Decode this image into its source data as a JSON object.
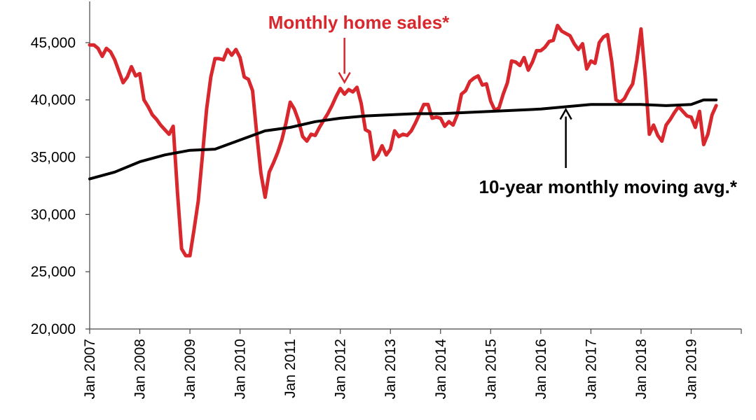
{
  "chart_data": {
    "type": "line",
    "title": "",
    "xlabel": "",
    "ylabel": "",
    "ylim": [
      20000,
      47500
    ],
    "yticks": [
      20000,
      25000,
      30000,
      35000,
      40000,
      45000
    ],
    "ytick_labels": [
      "20,000",
      "25,000",
      "30,000",
      "35,000",
      "40,000",
      "45,000"
    ],
    "xticks": [
      "2007-01",
      "2008-01",
      "2009-01",
      "2010-01",
      "2011-01",
      "2012-01",
      "2013-01",
      "2014-01",
      "2015-01",
      "2016-01",
      "2017-01",
      "2018-01",
      "2019-01"
    ],
    "xtick_labels": [
      "Jan 2007",
      "Jan 2008",
      "Jan 2009",
      "Jan 2010",
      "Jan 2011",
      "Jan 2012",
      "Jan 2013",
      "Jan 2014",
      "Jan 2015",
      "Jan 2016",
      "Jan 2017",
      "Jan 2018",
      "Jan 2019"
    ],
    "x_range": [
      "2007-01",
      "2020-01"
    ],
    "grid": false,
    "series": [
      {
        "name": "Monthly home sales*",
        "color": "#d9272e",
        "points": [
          [
            "2007-01",
            44800
          ],
          [
            "2007-02",
            44800
          ],
          [
            "2007-03",
            44500
          ],
          [
            "2007-04",
            43800
          ],
          [
            "2007-05",
            44500
          ],
          [
            "2007-06",
            44200
          ],
          [
            "2007-07",
            43500
          ],
          [
            "2007-08",
            42500
          ],
          [
            "2007-09",
            41500
          ],
          [
            "2007-10",
            42000
          ],
          [
            "2007-11",
            42900
          ],
          [
            "2007-12",
            42100
          ],
          [
            "2008-01",
            42300
          ],
          [
            "2008-02",
            40000
          ],
          [
            "2008-03",
            39400
          ],
          [
            "2008-04",
            38700
          ],
          [
            "2008-05",
            38300
          ],
          [
            "2008-06",
            37800
          ],
          [
            "2008-07",
            37400
          ],
          [
            "2008-08",
            37000
          ],
          [
            "2008-09",
            37700
          ],
          [
            "2008-10",
            32000
          ],
          [
            "2008-11",
            27000
          ],
          [
            "2008-12",
            26400
          ],
          [
            "2009-01",
            26400
          ],
          [
            "2009-02",
            28700
          ],
          [
            "2009-03",
            31200
          ],
          [
            "2009-04",
            35200
          ],
          [
            "2009-05",
            39200
          ],
          [
            "2009-06",
            42000
          ],
          [
            "2009-07",
            43600
          ],
          [
            "2009-08",
            43600
          ],
          [
            "2009-09",
            43500
          ],
          [
            "2009-10",
            44400
          ],
          [
            "2009-11",
            43900
          ],
          [
            "2009-12",
            44400
          ],
          [
            "2010-01",
            43700
          ],
          [
            "2010-02",
            42000
          ],
          [
            "2010-03",
            41800
          ],
          [
            "2010-04",
            40800
          ],
          [
            "2010-05",
            37000
          ],
          [
            "2010-06",
            33600
          ],
          [
            "2010-07",
            31500
          ],
          [
            "2010-08",
            33700
          ],
          [
            "2010-09",
            34500
          ],
          [
            "2010-10",
            35400
          ],
          [
            "2010-11",
            36500
          ],
          [
            "2010-12",
            38000
          ],
          [
            "2011-01",
            39800
          ],
          [
            "2011-02",
            39200
          ],
          [
            "2011-03",
            38200
          ],
          [
            "2011-04",
            36800
          ],
          [
            "2011-05",
            36400
          ],
          [
            "2011-06",
            37000
          ],
          [
            "2011-07",
            36900
          ],
          [
            "2011-08",
            37600
          ],
          [
            "2011-09",
            38200
          ],
          [
            "2011-10",
            38800
          ],
          [
            "2011-11",
            39500
          ],
          [
            "2011-12",
            40300
          ],
          [
            "2012-01",
            41000
          ],
          [
            "2012-02",
            40500
          ],
          [
            "2012-03",
            40900
          ],
          [
            "2012-04",
            40700
          ],
          [
            "2012-05",
            41100
          ],
          [
            "2012-06",
            39700
          ],
          [
            "2012-07",
            37400
          ],
          [
            "2012-08",
            37200
          ],
          [
            "2012-09",
            34800
          ],
          [
            "2012-10",
            35200
          ],
          [
            "2012-11",
            36000
          ],
          [
            "2012-12",
            35200
          ],
          [
            "2013-01",
            35700
          ],
          [
            "2013-02",
            37300
          ],
          [
            "2013-03",
            36800
          ],
          [
            "2013-04",
            37000
          ],
          [
            "2013-05",
            36900
          ],
          [
            "2013-06",
            37300
          ],
          [
            "2013-07",
            38000
          ],
          [
            "2013-08",
            38800
          ],
          [
            "2013-09",
            39600
          ],
          [
            "2013-10",
            39600
          ],
          [
            "2013-11",
            38400
          ],
          [
            "2013-12",
            38500
          ],
          [
            "2014-01",
            38400
          ],
          [
            "2014-02",
            37700
          ],
          [
            "2014-03",
            38100
          ],
          [
            "2014-04",
            37800
          ],
          [
            "2014-05",
            38700
          ],
          [
            "2014-06",
            40500
          ],
          [
            "2014-07",
            40800
          ],
          [
            "2014-08",
            41600
          ],
          [
            "2014-09",
            41900
          ],
          [
            "2014-10",
            42100
          ],
          [
            "2014-11",
            41300
          ],
          [
            "2014-12",
            41400
          ],
          [
            "2015-01",
            39900
          ],
          [
            "2015-02",
            39100
          ],
          [
            "2015-03",
            39300
          ],
          [
            "2015-04",
            40500
          ],
          [
            "2015-05",
            41500
          ],
          [
            "2015-06",
            43400
          ],
          [
            "2015-07",
            43300
          ],
          [
            "2015-08",
            43000
          ],
          [
            "2015-09",
            43700
          ],
          [
            "2015-10",
            42600
          ],
          [
            "2015-11",
            43300
          ],
          [
            "2015-12",
            44300
          ],
          [
            "2016-01",
            44300
          ],
          [
            "2016-02",
            44600
          ],
          [
            "2016-03",
            45100
          ],
          [
            "2016-04",
            45200
          ],
          [
            "2016-05",
            46500
          ],
          [
            "2016-06",
            46000
          ],
          [
            "2016-07",
            45800
          ],
          [
            "2016-08",
            45600
          ],
          [
            "2016-09",
            44900
          ],
          [
            "2016-10",
            44400
          ],
          [
            "2016-11",
            44900
          ],
          [
            "2016-12",
            42700
          ],
          [
            "2017-01",
            43400
          ],
          [
            "2017-02",
            43200
          ],
          [
            "2017-03",
            45000
          ],
          [
            "2017-04",
            45500
          ],
          [
            "2017-05",
            45700
          ],
          [
            "2017-06",
            43300
          ],
          [
            "2017-07",
            40000
          ],
          [
            "2017-08",
            39800
          ],
          [
            "2017-09",
            40100
          ],
          [
            "2017-10",
            40800
          ],
          [
            "2017-11",
            41400
          ],
          [
            "2017-12",
            43500
          ],
          [
            "2018-01",
            46200
          ],
          [
            "2018-02",
            42000
          ],
          [
            "2018-03",
            37000
          ],
          [
            "2018-04",
            37800
          ],
          [
            "2018-05",
            36900
          ],
          [
            "2018-06",
            36400
          ],
          [
            "2018-07",
            37800
          ],
          [
            "2018-08",
            38300
          ],
          [
            "2018-09",
            38900
          ],
          [
            "2018-10",
            39400
          ],
          [
            "2018-11",
            39000
          ],
          [
            "2018-12",
            38600
          ],
          [
            "2019-01",
            38500
          ],
          [
            "2019-02",
            37600
          ],
          [
            "2019-03",
            39000
          ],
          [
            "2019-04",
            36100
          ],
          [
            "2019-05",
            37000
          ],
          [
            "2019-06",
            38700
          ],
          [
            "2019-07",
            39500
          ]
        ]
      },
      {
        "name": "10-year monthly moving avg.*",
        "color": "#000000",
        "points": [
          [
            "2007-01",
            33100
          ],
          [
            "2007-07",
            33700
          ],
          [
            "2008-01",
            34600
          ],
          [
            "2008-07",
            35200
          ],
          [
            "2009-01",
            35600
          ],
          [
            "2009-07",
            35700
          ],
          [
            "2010-01",
            36500
          ],
          [
            "2010-07",
            37300
          ],
          [
            "2011-01",
            37600
          ],
          [
            "2011-07",
            38100
          ],
          [
            "2012-01",
            38400
          ],
          [
            "2012-07",
            38600
          ],
          [
            "2013-01",
            38700
          ],
          [
            "2013-07",
            38800
          ],
          [
            "2014-01",
            38800
          ],
          [
            "2014-07",
            38900
          ],
          [
            "2015-01",
            39000
          ],
          [
            "2015-07",
            39100
          ],
          [
            "2016-01",
            39200
          ],
          [
            "2016-07",
            39400
          ],
          [
            "2017-01",
            39600
          ],
          [
            "2017-07",
            39600
          ],
          [
            "2018-01",
            39600
          ],
          [
            "2018-07",
            39500
          ],
          [
            "2019-01",
            39600
          ],
          [
            "2019-04",
            40000
          ],
          [
            "2019-07",
            40000
          ]
        ]
      }
    ],
    "annotations": [
      {
        "text": "Monthly home sales*",
        "color": "#d9272e",
        "target": [
          "2012-02",
          41300
        ]
      },
      {
        "text": "10-year monthly moving avg.*",
        "color": "#000000",
        "target": [
          "2016-07",
          39400
        ]
      }
    ]
  }
}
